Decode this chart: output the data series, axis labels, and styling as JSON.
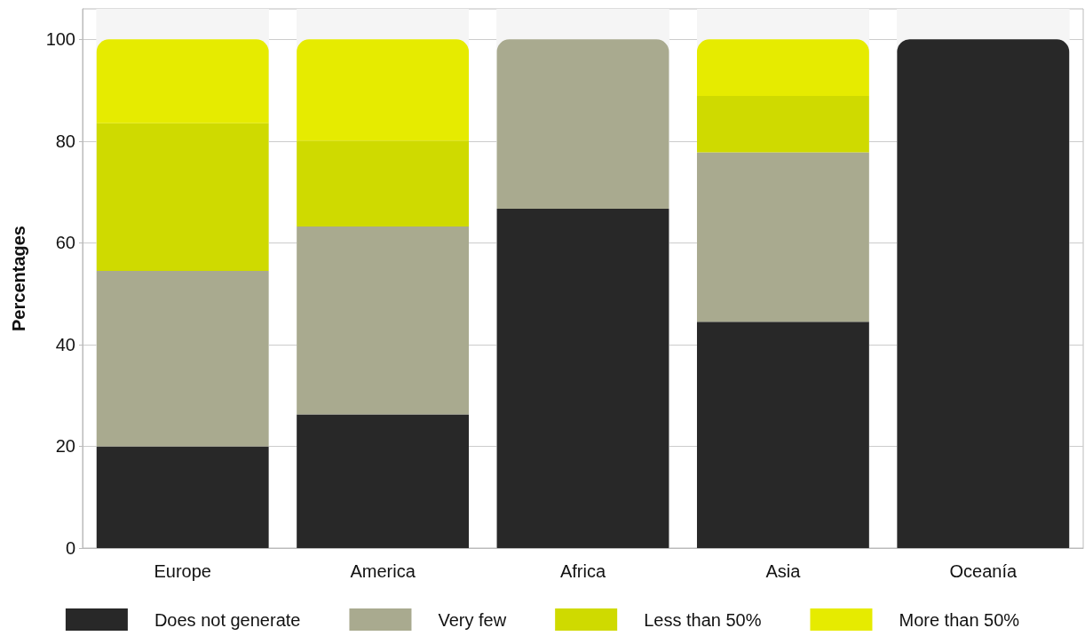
{
  "chart_data": {
    "type": "bar",
    "stacked": true,
    "ylabel": "Percentages",
    "categories": [
      "Europe",
      "America",
      "Africa",
      "Asia",
      "Oceanía"
    ],
    "series": [
      {
        "name": "Does not generate",
        "color": "#282828",
        "values": [
          20,
          26.3,
          66.7,
          44.5,
          100
        ]
      },
      {
        "name": "Very few",
        "color": "#a9aa8f",
        "values": [
          34.5,
          36.9,
          33.3,
          33.3,
          0
        ]
      },
      {
        "name": "Less than 50%",
        "color": "#cfda00",
        "values": [
          29,
          16.9,
          0,
          11.1,
          0
        ]
      },
      {
        "name": "More than 50%",
        "color": "#e6eb00",
        "values": [
          16.5,
          19.9,
          0,
          11.1,
          0
        ]
      }
    ],
    "ylim": [
      0,
      106
    ],
    "yticks": [
      0,
      20,
      40,
      60,
      80,
      100
    ],
    "grid": "y",
    "legend": "bottom"
  }
}
